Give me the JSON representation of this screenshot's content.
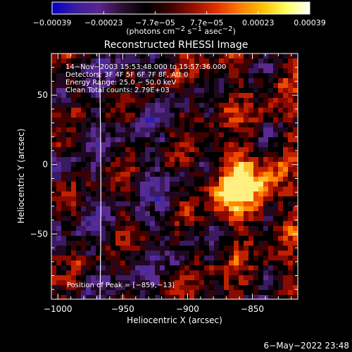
{
  "chart_data": {
    "type": "heatmap",
    "title": "Reconstructed RHESSI Image",
    "xlabel": "Heliocentric X (arcsec)",
    "ylabel": "Heliocentric Y (arcsec)",
    "xlim": [
      -1005,
      -815
    ],
    "ylim": [
      -97,
      80
    ],
    "xticks": [
      -1000,
      -950,
      -900,
      -850
    ],
    "yticks": [
      -50,
      0,
      50
    ],
    "x_tick_labels": [
      "−1000",
      "−950",
      "−900",
      "−850"
    ],
    "y_tick_labels": [
      "−50",
      "0",
      "50"
    ],
    "colorbar": {
      "tick_labels": [
        "−0.00039",
        "−0.00023",
        "−7.7e−05",
        "7.7e−05",
        "0.00023",
        "0.00039"
      ],
      "units": {
        "lead": "(photons cm",
        "exp1": "−2",
        "mid1": " s",
        "exp2": "−1",
        "mid2": " asec",
        "exp3": "−2",
        "tail": ")"
      },
      "colors": [
        "#0000c8",
        "#3a1ea0",
        "#5a2490",
        "#2a1030",
        "#000000",
        "#3a0000",
        "#901000",
        "#e03000",
        "#ff7a00",
        "#ffc000",
        "#ffff60",
        "#ffffff"
      ]
    },
    "annotations": [
      "14−Nov−2003 15:53:48.000 to 15:57:36.000",
      "Detectors: 3F 4F 5F 6F 7F 8F, Att 0",
      "Energy Range: 25.0 − 50.0 keV",
      "Clean    Total counts: 2.79E+03"
    ],
    "peak_label": "Position of Peak = [−859,−13]",
    "peak": [
      -859,
      -13
    ],
    "limb_line_x": -967
  },
  "footer": {
    "date": "6−May−2022 23:48"
  }
}
